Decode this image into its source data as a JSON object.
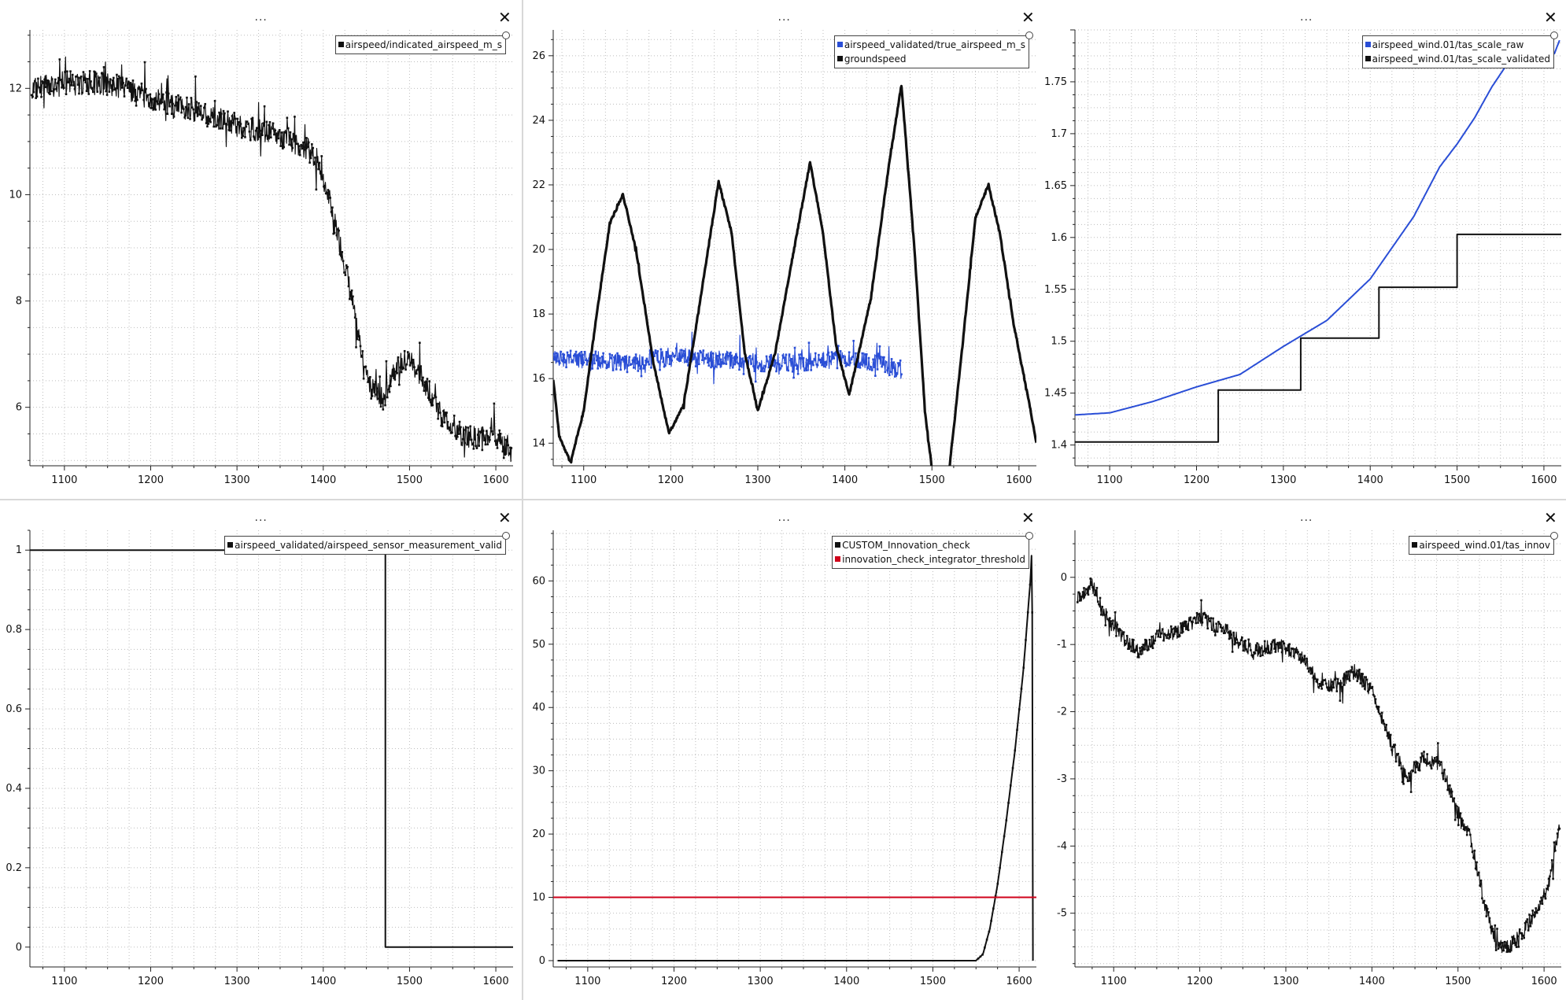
{
  "window": {
    "menu_label": "...",
    "close_label": "✕",
    "close_icon": "close-icon"
  },
  "colors": {
    "black": "#111111",
    "blue": "#2a4ed6",
    "red": "#d0021b"
  },
  "chart_data": [
    {
      "type": "line",
      "x_ticks": [
        1100,
        1200,
        1300,
        1400,
        1500,
        1600
      ],
      "y_ticks": [
        6,
        8,
        10,
        12
      ],
      "xlim": [
        1060,
        1620
      ],
      "ylim": [
        4.9,
        13.1
      ],
      "grid": true,
      "legend": "top-right",
      "series": [
        {
          "name": "airspeed/indicated_airspeed_m_s",
          "color": "#111111",
          "noise": 0.45,
          "x": [
            1062,
            1100,
            1150,
            1200,
            1250,
            1300,
            1350,
            1380,
            1395,
            1410,
            1425,
            1440,
            1455,
            1470,
            1480,
            1500,
            1520,
            1540,
            1560,
            1580,
            1600,
            1618
          ],
          "y": [
            12.0,
            12.1,
            12.1,
            11.8,
            11.6,
            11.3,
            11.1,
            10.9,
            10.6,
            9.7,
            8.7,
            7.4,
            6.4,
            6.1,
            6.7,
            6.9,
            6.4,
            5.8,
            5.5,
            5.4,
            5.5,
            5.2
          ]
        }
      ]
    },
    {
      "type": "line",
      "x_ticks": [
        1100,
        1200,
        1300,
        1400,
        1500,
        1600
      ],
      "y_ticks": [
        14,
        16,
        18,
        20,
        22,
        24,
        26
      ],
      "xlim": [
        1065,
        1620
      ],
      "ylim": [
        13.3,
        26.8
      ],
      "grid": true,
      "legend": "top-right",
      "series": [
        {
          "name": "airspeed_validated/true_airspeed_m_s",
          "color": "#2a4ed6",
          "noise": 0.55,
          "x": [
            1065,
            1100,
            1150,
            1200,
            1250,
            1300,
            1350,
            1400,
            1440,
            1465
          ],
          "y": [
            16.6,
            16.6,
            16.5,
            16.7,
            16.6,
            16.5,
            16.5,
            16.6,
            16.5,
            16.2
          ]
        },
        {
          "name": "groundspeed",
          "color": "#111111",
          "noise": 0.08,
          "x": [
            1065,
            1072,
            1085,
            1100,
            1115,
            1130,
            1145,
            1160,
            1180,
            1198,
            1215,
            1240,
            1255,
            1270,
            1285,
            1300,
            1320,
            1345,
            1360,
            1375,
            1390,
            1405,
            1430,
            1450,
            1465,
            1480,
            1492,
            1500,
            1508,
            1520,
            1535,
            1550,
            1565,
            1578,
            1595,
            1610,
            1620
          ],
          "y": [
            16.0,
            14.2,
            13.4,
            15.0,
            18.0,
            20.8,
            21.7,
            20.0,
            16.5,
            14.3,
            15.2,
            19.5,
            22.1,
            20.5,
            16.8,
            15.0,
            16.8,
            20.5,
            22.7,
            20.5,
            17.0,
            15.5,
            18.5,
            22.5,
            25.1,
            20.0,
            15.0,
            13.2,
            12.8,
            13.2,
            17.0,
            21.0,
            22.0,
            20.5,
            17.5,
            15.5,
            14.0
          ]
        }
      ]
    },
    {
      "type": "line",
      "x_ticks": [
        1100,
        1200,
        1300,
        1400,
        1500,
        1600
      ],
      "y_ticks": [
        1.4,
        1.45,
        1.5,
        1.55,
        1.6,
        1.65,
        1.7,
        1.75
      ],
      "xlim": [
        1060,
        1620
      ],
      "ylim": [
        1.38,
        1.8
      ],
      "grid": true,
      "legend": "top-right",
      "series": [
        {
          "name": "airspeed_wind.01/tas_scale_raw",
          "color": "#2a4ed6",
          "noise": 0,
          "x": [
            1060,
            1100,
            1150,
            1200,
            1250,
            1300,
            1350,
            1400,
            1450,
            1480,
            1500,
            1520,
            1540,
            1560,
            1600,
            1612,
            1618
          ],
          "y": [
            1.429,
            1.431,
            1.442,
            1.456,
            1.468,
            1.495,
            1.52,
            1.56,
            1.62,
            1.668,
            1.69,
            1.715,
            1.745,
            1.77,
            1.773,
            1.777,
            1.79
          ]
        },
        {
          "name": "airspeed_wind.01/tas_scale_validated",
          "color": "#111111",
          "noise": 0,
          "step": true,
          "x": [
            1060,
            1225,
            1320,
            1410,
            1500,
            1620
          ],
          "y": [
            1.403,
            1.453,
            1.503,
            1.552,
            1.603,
            1.603
          ]
        }
      ]
    },
    {
      "type": "line",
      "x_ticks": [
        1100,
        1200,
        1300,
        1400,
        1500,
        1600
      ],
      "y_ticks": [
        0,
        0.2,
        0.4,
        0.6,
        0.8,
        1
      ],
      "xlim": [
        1060,
        1620
      ],
      "ylim": [
        -0.05,
        1.05
      ],
      "grid": true,
      "legend": "top-right",
      "series": [
        {
          "name": "airspeed_validated/airspeed_sensor_measurement_valid",
          "color": "#111111",
          "noise": 0,
          "step": true,
          "x": [
            1060,
            1472,
            1620
          ],
          "y": [
            1,
            0,
            0
          ]
        }
      ]
    },
    {
      "type": "line",
      "x_ticks": [
        1100,
        1200,
        1300,
        1400,
        1500,
        1600
      ],
      "y_ticks": [
        0,
        10,
        20,
        30,
        40,
        50,
        60
      ],
      "xlim": [
        1060,
        1620
      ],
      "ylim": [
        -1,
        68
      ],
      "grid": true,
      "legend": "top-right",
      "series": [
        {
          "name": "CUSTOM_Innovation_check",
          "color": "#111111",
          "noise": 0,
          "x": [
            1065,
            1550,
            1558,
            1566,
            1575,
            1585,
            1595,
            1605,
            1613,
            1615,
            1616
          ],
          "y": [
            0,
            0,
            1,
            5,
            12,
            22,
            33,
            46,
            60,
            66,
            0
          ]
        },
        {
          "name": "innovation_check_integrator_threshold",
          "color": "#d0021b",
          "noise": 0,
          "x": [
            1060,
            1620
          ],
          "y": [
            10,
            10
          ]
        }
      ]
    },
    {
      "type": "line",
      "x_ticks": [
        1100,
        1200,
        1300,
        1400,
        1500,
        1600
      ],
      "y_ticks": [
        0,
        -1,
        -2,
        -3,
        -4,
        -5
      ],
      "xlim": [
        1055,
        1620
      ],
      "ylim": [
        -5.8,
        0.7
      ],
      "grid": true,
      "legend": "top-right",
      "series": [
        {
          "name": "airspeed_wind.01/tas_innov",
          "color": "#111111",
          "noise": 0.22,
          "x": [
            1058,
            1075,
            1090,
            1110,
            1130,
            1150,
            1175,
            1200,
            1230,
            1260,
            1290,
            1320,
            1340,
            1360,
            1380,
            1400,
            1420,
            1440,
            1460,
            1480,
            1500,
            1515,
            1530,
            1545,
            1560,
            1575,
            1590,
            1605,
            1618
          ],
          "y": [
            -0.3,
            -0.1,
            -0.6,
            -0.9,
            -1.1,
            -0.9,
            -0.8,
            -0.6,
            -0.8,
            -1.1,
            -1.0,
            -1.2,
            -1.6,
            -1.6,
            -1.4,
            -1.7,
            -2.4,
            -3.0,
            -2.7,
            -2.8,
            -3.5,
            -3.9,
            -4.8,
            -5.5,
            -5.5,
            -5.3,
            -5.0,
            -4.6,
            -3.7
          ]
        }
      ]
    }
  ]
}
